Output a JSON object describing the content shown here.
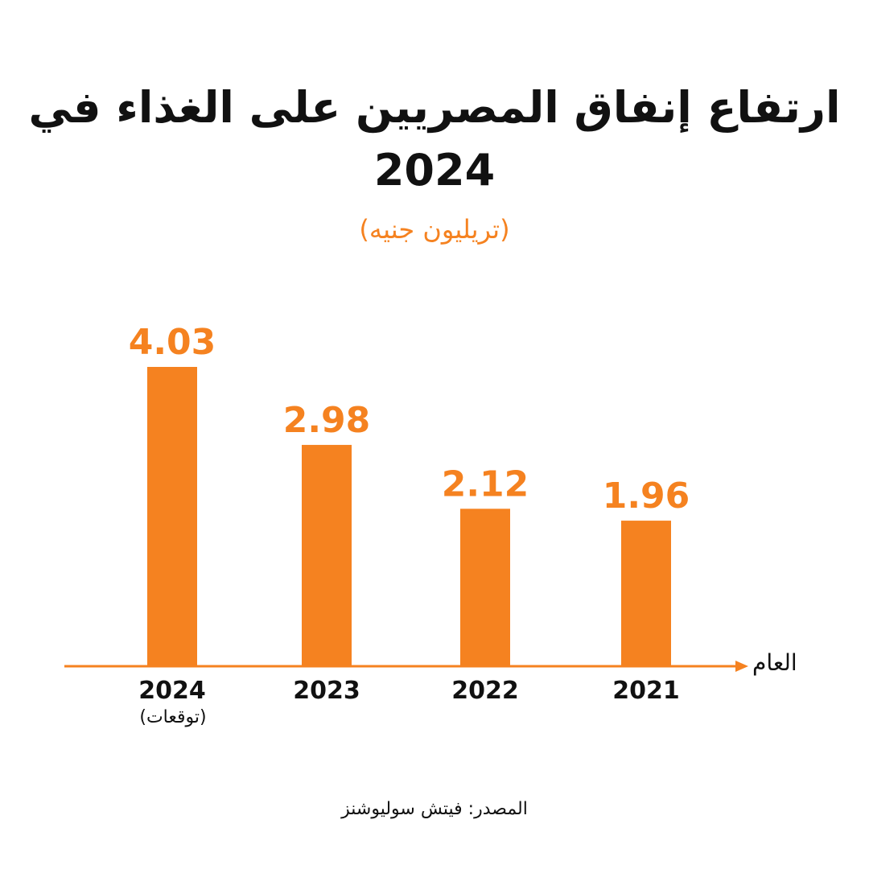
{
  "chart_data": {
    "type": "bar",
    "title": "ارتفاع إنفاق المصريين على الغذاء في 2024",
    "subtitle": "(تريليون جنيه)",
    "categories": [
      "2024",
      "2023",
      "2022",
      "2021"
    ],
    "category_notes": [
      "(توقعات)",
      "",
      "",
      ""
    ],
    "values": [
      4.03,
      2.98,
      2.12,
      1.96
    ],
    "value_labels": [
      "4.03",
      "2.98",
      "2.12",
      "1.96"
    ],
    "xlabel": "العام",
    "ylabel": "",
    "ylim": [
      0,
      4.5
    ],
    "grid": false,
    "legend": "none",
    "source": "المصدر: فيتش سوليوشنز",
    "colors": {
      "bar": "#f58220",
      "title": "#111111",
      "subtitle": "#f58220",
      "axis": "#f58220",
      "text": "#111111"
    }
  }
}
